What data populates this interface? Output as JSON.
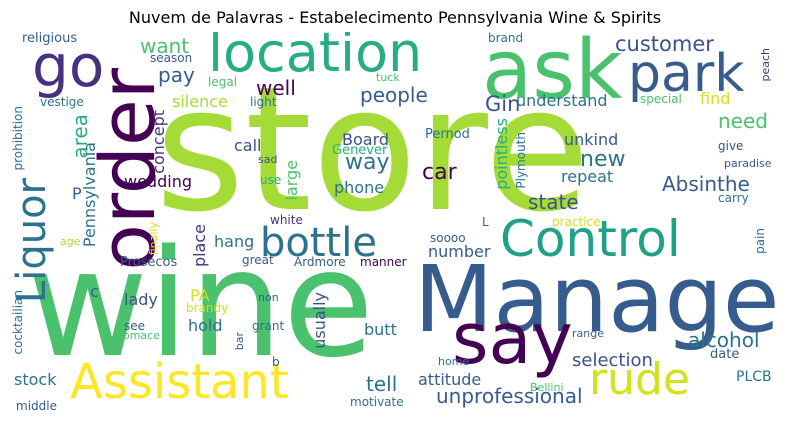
{
  "title": "Nuvem de Palavras - Estabelecimento Pennsylvania Wine & Spirits",
  "words": {
    "store": "store",
    "wine": "wine",
    "manager": "Manager",
    "ask": "ask",
    "order": "order",
    "control": "Control",
    "location": "location",
    "say": "say",
    "assistant": "Assistant",
    "bottle": "bottle",
    "park": "park",
    "liquor": "Liquor",
    "go": "go",
    "rude": "rude",
    "customer": "customer",
    "want": "want",
    "pay": "pay",
    "well": "well",
    "people": "people",
    "gin": "Gin",
    "understand": "understand",
    "need": "need",
    "way": "way",
    "car": "car",
    "new": "new",
    "absinthe": "Absinthe",
    "state": "state",
    "unkind": "unkind",
    "repeat": "repeat",
    "pointless": "pointless",
    "plymouth": "Plymouth",
    "pernod": "Pernod",
    "genever": "Genever",
    "board": "Board",
    "phone": "phone",
    "call": "call",
    "concept": "concept",
    "silence": "silence",
    "light": "light",
    "legal": "legal",
    "season": "season",
    "religious": "religious",
    "vestige": "vestige",
    "prohibition": "prohibition",
    "area": "area",
    "pennsylvania": "Pennsylvania",
    "wedding": "wedding",
    "p": "P",
    "brand": "brand",
    "tuck": "tuck",
    "special": "special",
    "find": "find",
    "peach": "peach",
    "give": "give",
    "paradise": "paradise",
    "carry": "carry",
    "pain": "pain",
    "sad": "sad",
    "use": "use",
    "large": "large",
    "white": "white",
    "practice": "practice",
    "l": "L",
    "soooo": "soooo",
    "number": "number",
    "finally": "finally",
    "age": "age",
    "place": "place",
    "hang": "hang",
    "great": "great",
    "ardmore": "Ardmore",
    "manner": "manner",
    "prosecos": "Prosecos",
    "c": "c",
    "lady": "lady",
    "pa": "PA",
    "brandy": "brandy",
    "non": "non",
    "hold": "hold",
    "grant": "grant",
    "usually": "usually",
    "butt": "butt",
    "selection": "selection",
    "alcohol": "alcohol",
    "date": "date",
    "range": "range",
    "cocktailian": "cocktailian",
    "see": "see",
    "pomace": "pomace",
    "bar": "bar",
    "b": "b",
    "home": "home",
    "bellini": "Bellini",
    "stock": "stock",
    "tell": "tell",
    "attitude": "attitude",
    "plcb": "PLCB",
    "unprofessional": "unprofessional",
    "motivate": "motivate",
    "middle": "middle"
  },
  "colors": {
    "lime": "#a5db36",
    "green": "#4ac16d",
    "teal": "#1fa187",
    "teal2": "#27ad81",
    "blue": "#365c8d",
    "blue2": "#2c728e",
    "purple": "#440154",
    "purple2": "#46327e",
    "yellow": "#fde725",
    "yellowgreen": "#d2e21b",
    "slate": "#3b528b"
  }
}
